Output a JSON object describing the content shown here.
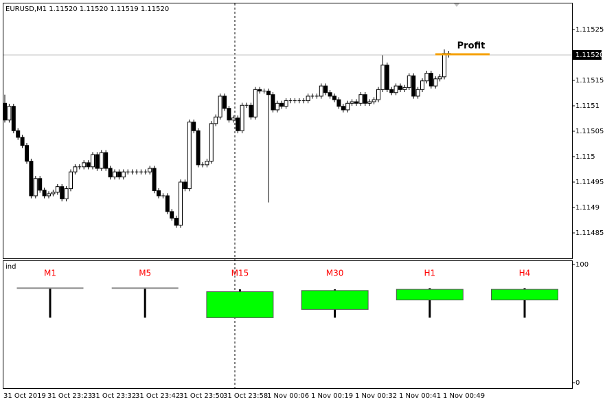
{
  "header": "EURUSD,M1  1.11520 1.11520 1.11519 1.11520",
  "chart_data": [
    {
      "type": "candlestick",
      "categories": [
        "31 Oct 2019",
        null,
        null,
        null,
        null,
        null,
        null,
        null,
        null,
        null,
        "31 Oct 23:23",
        null,
        null,
        null,
        null,
        null,
        null,
        null,
        null,
        null,
        "31 Oct 23:32",
        null,
        null,
        null,
        null,
        null,
        null,
        null,
        null,
        null,
        "31 Oct 23:42",
        null,
        null,
        null,
        null,
        null,
        null,
        null,
        null,
        null,
        "31 Oct 23:50",
        null,
        null,
        null,
        null,
        null,
        null,
        null,
        null,
        null,
        "31 Oct 23:58",
        null,
        null,
        null,
        null,
        null,
        null,
        null,
        null,
        null,
        "1 Nov 00:06",
        null,
        null,
        null,
        null,
        null,
        null,
        null,
        null,
        null,
        "1 Nov 00:19",
        null,
        null,
        null,
        null,
        null,
        null,
        null,
        null,
        null,
        "1 Nov 00:32",
        null,
        null,
        null,
        null,
        null,
        null,
        null,
        null,
        null,
        "1 Nov 00:41",
        null,
        null,
        null,
        null,
        null,
        null,
        null,
        null,
        null,
        "1 Nov 00:49",
        null
      ],
      "open": [
        1.115105,
        1.115072,
        1.115099,
        1.115051,
        1.115038,
        1.115022,
        1.114991,
        1.114923,
        1.114957,
        1.114934,
        1.114923,
        1.114927,
        1.11493,
        1.114941,
        1.114917,
        1.114937,
        1.11497,
        1.11498,
        1.11498,
        1.114988,
        1.11498,
        1.115004,
        1.114977,
        1.115008,
        1.114977,
        1.11496,
        1.11497,
        1.11496,
        1.11497,
        1.11497,
        1.11497,
        1.11497,
        1.11497,
        1.11497,
        1.114977,
        1.114933,
        1.114923,
        1.114923,
        1.114892,
        1.114879,
        1.114865,
        1.11495,
        1.114937,
        1.115068,
        1.115051,
        1.114984,
        1.114984,
        1.114991,
        1.115065,
        1.115078,
        1.115119,
        1.115095,
        1.115072,
        1.115076,
        1.115051,
        1.115101,
        1.115101,
        1.115078,
        1.115132,
        1.115129,
        1.115129,
        1.115122,
        1.115092,
        1.115105,
        1.115099,
        1.11511,
        1.11511,
        1.11511,
        1.11511,
        1.11511,
        1.115119,
        1.115119,
        1.115119,
        1.115139,
        1.115126,
        1.115119,
        1.115112,
        1.115099,
        1.115092,
        1.115105,
        1.115108,
        1.115105,
        1.115122,
        1.115105,
        1.115108,
        1.115112,
        1.115132,
        1.11518,
        1.115132,
        1.115126,
        1.115139,
        1.115132,
        1.115136,
        1.115159,
        1.115119,
        1.115132,
        1.115149,
        1.115164,
        1.115139,
        1.115153,
        1.115157,
        1.115203
      ],
      "high": [
        1.115122,
        1.115104,
        1.115104,
        1.115056,
        1.115043,
        1.115027,
        1.114996,
        1.114962,
        1.114962,
        1.114939,
        1.114932,
        1.114935,
        1.114946,
        1.114946,
        1.114942,
        1.114975,
        1.114985,
        1.114985,
        1.114993,
        1.114993,
        1.115009,
        1.115009,
        1.115013,
        1.115013,
        1.114982,
        1.114975,
        1.114975,
        1.114975,
        1.114975,
        1.114975,
        1.114975,
        1.114975,
        1.114975,
        1.114982,
        1.114982,
        1.114938,
        1.114928,
        1.114928,
        1.114897,
        1.114884,
        1.114955,
        1.114955,
        1.115073,
        1.115073,
        1.115056,
        1.114989,
        1.114996,
        1.11507,
        1.115083,
        1.115124,
        1.115124,
        1.1151,
        1.115081,
        1.115081,
        1.115106,
        1.115106,
        1.115106,
        1.115137,
        1.115137,
        1.115134,
        1.115134,
        1.115127,
        1.11511,
        1.11511,
        1.115115,
        1.115115,
        1.115115,
        1.115115,
        1.115115,
        1.115124,
        1.115124,
        1.115124,
        1.115144,
        1.115144,
        1.115131,
        1.115124,
        1.115117,
        1.115104,
        1.11511,
        1.115113,
        1.115113,
        1.115127,
        1.115127,
        1.115113,
        1.115117,
        1.115137,
        1.1152,
        1.115185,
        1.115137,
        1.115144,
        1.115144,
        1.115141,
        1.115164,
        1.115164,
        1.115137,
        1.115154,
        1.115169,
        1.115169,
        1.115158,
        1.115162,
        1.115211,
        1.115208
      ],
      "low": [
        1.115067,
        1.115067,
        1.115046,
        1.115033,
        1.115017,
        1.114986,
        1.114918,
        1.114918,
        1.114929,
        1.114918,
        1.114918,
        1.114922,
        1.114925,
        1.114912,
        1.114912,
        1.114932,
        1.114965,
        1.114975,
        1.114975,
        1.114975,
        1.114975,
        1.114972,
        1.114972,
        1.114972,
        1.114955,
        1.114955,
        1.114955,
        1.114955,
        1.114965,
        1.114965,
        1.114965,
        1.114965,
        1.114965,
        1.114965,
        1.114928,
        1.114918,
        1.114918,
        1.114887,
        1.114874,
        1.11486,
        1.11486,
        1.114932,
        1.114932,
        1.115046,
        1.114979,
        1.114979,
        1.114979,
        1.114986,
        1.11506,
        1.115073,
        1.11509,
        1.115067,
        1.115067,
        1.115046,
        1.115046,
        1.115096,
        1.115073,
        1.115073,
        1.115124,
        1.115124,
        1.11491,
        1.115087,
        1.115087,
        1.115094,
        1.115094,
        1.115105,
        1.115105,
        1.115105,
        1.115105,
        1.115105,
        1.115114,
        1.115114,
        1.115114,
        1.115121,
        1.115114,
        1.115107,
        1.115094,
        1.115087,
        1.115087,
        1.1151,
        1.1151,
        1.1151,
        1.1151,
        1.1151,
        1.115103,
        1.115107,
        1.115127,
        1.115127,
        1.115121,
        1.115121,
        1.115127,
        1.115127,
        1.115131,
        1.115114,
        1.115114,
        1.115127,
        1.115144,
        1.115134,
        1.115134,
        1.115148,
        1.115152,
        1.115195
      ],
      "close": [
        1.115072,
        1.115099,
        1.115051,
        1.115038,
        1.115022,
        1.114991,
        1.114923,
        1.114957,
        1.114934,
        1.114923,
        1.114927,
        1.11493,
        1.114941,
        1.114917,
        1.114937,
        1.11497,
        1.11498,
        1.11498,
        1.114988,
        1.11498,
        1.115004,
        1.114977,
        1.115008,
        1.114977,
        1.11496,
        1.11497,
        1.11496,
        1.11497,
        1.11497,
        1.11497,
        1.11497,
        1.11497,
        1.11497,
        1.114977,
        1.114933,
        1.114923,
        1.114923,
        1.114892,
        1.114879,
        1.114865,
        1.11495,
        1.114937,
        1.115068,
        1.115051,
        1.114984,
        1.114984,
        1.114991,
        1.115065,
        1.115078,
        1.115119,
        1.115095,
        1.115072,
        1.115076,
        1.115051,
        1.115101,
        1.115101,
        1.115078,
        1.115132,
        1.115129,
        1.115129,
        1.115122,
        1.115092,
        1.115105,
        1.115099,
        1.11511,
        1.11511,
        1.11511,
        1.11511,
        1.11511,
        1.115119,
        1.115119,
        1.115119,
        1.115139,
        1.115126,
        1.115119,
        1.115112,
        1.115099,
        1.115092,
        1.115105,
        1.115108,
        1.115105,
        1.115122,
        1.115105,
        1.115108,
        1.115112,
        1.115132,
        1.11518,
        1.115132,
        1.115126,
        1.115139,
        1.115132,
        1.115136,
        1.115159,
        1.115119,
        1.115132,
        1.115149,
        1.115164,
        1.115139,
        1.115153,
        1.115157,
        1.115203,
        1.1152
      ],
      "ylim": [
        1.1148,
        1.1153
      ],
      "yticks": [
        1.11485,
        1.1149,
        1.11495,
        1.115,
        1.11505,
        1.1151,
        1.11515,
        1.1152,
        1.11525
      ],
      "last_price": {
        "value": 1.1152,
        "label": "1.11520"
      },
      "annotation": "Profit",
      "annotation_color": "#f5a000",
      "up_color": "#ffffff",
      "down_color": "#000000"
    },
    {
      "type": "candlestick",
      "title": "ind",
      "categories": [
        "M1",
        "M5",
        "M15",
        "M30",
        "H1",
        "H4"
      ],
      "open": [
        80,
        80,
        55,
        62,
        70,
        70
      ],
      "high": [
        80,
        80,
        79,
        79,
        80,
        80
      ],
      "low": [
        55,
        55,
        55,
        55,
        55,
        55
      ],
      "close": [
        80,
        80,
        77,
        78,
        79,
        79
      ],
      "ylim": [
        0,
        100
      ],
      "yticks": [
        0,
        100
      ],
      "up_color": "#00ff00",
      "down_color": "#000000",
      "label_color": "#ff0000"
    }
  ]
}
